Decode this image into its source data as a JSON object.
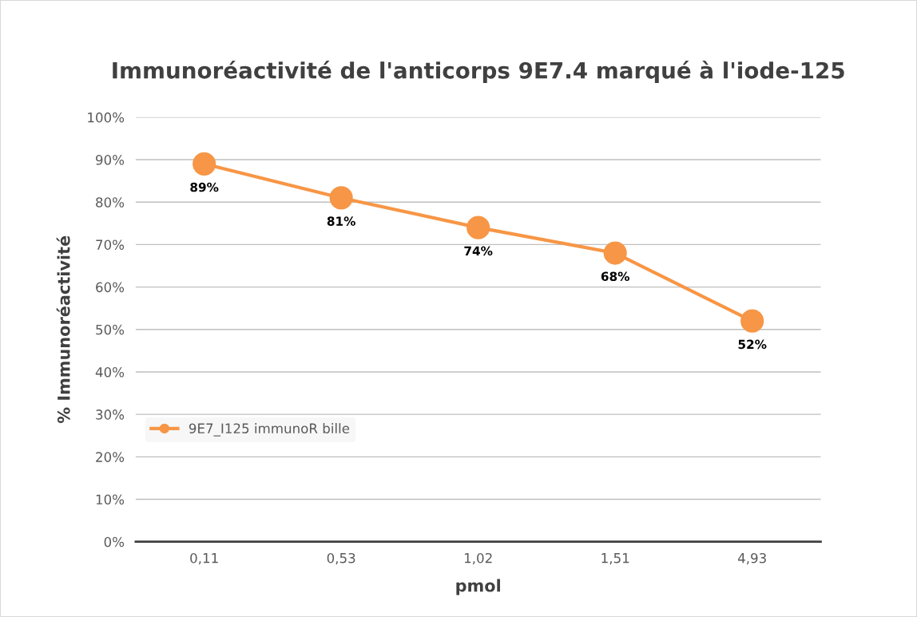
{
  "chart_data": {
    "type": "line",
    "title": "Immunoréactivité de l'anticorps 9E7.4 marqué à l'iode-125",
    "xlabel": "pmol",
    "ylabel": "% Immunoréactivité",
    "categories": [
      "0,11",
      "0,53",
      "1,02",
      "1,51",
      "4,93"
    ],
    "series": [
      {
        "name": "9E7_I125 immunoR bille",
        "color": "#f79646",
        "values": [
          89,
          81,
          74,
          68,
          52
        ],
        "value_labels": [
          "89%",
          "81%",
          "74%",
          "68%",
          "52%"
        ]
      }
    ],
    "ylim": [
      0,
      100
    ],
    "yticks": [
      {
        "value": 0,
        "label": "0%"
      },
      {
        "value": 10,
        "label": "10%"
      },
      {
        "value": 20,
        "label": "20%"
      },
      {
        "value": 30,
        "label": "30%"
      },
      {
        "value": 40,
        "label": "40%"
      },
      {
        "value": 50,
        "label": "50%"
      },
      {
        "value": 60,
        "label": "60%"
      },
      {
        "value": 70,
        "label": "70%"
      },
      {
        "value": 80,
        "label": "80%"
      },
      {
        "value": 90,
        "label": "90%"
      },
      {
        "value": 100,
        "label": "100%"
      }
    ],
    "grid": "y",
    "legend": "lower left",
    "marker": "circle",
    "line_style": "solid"
  }
}
